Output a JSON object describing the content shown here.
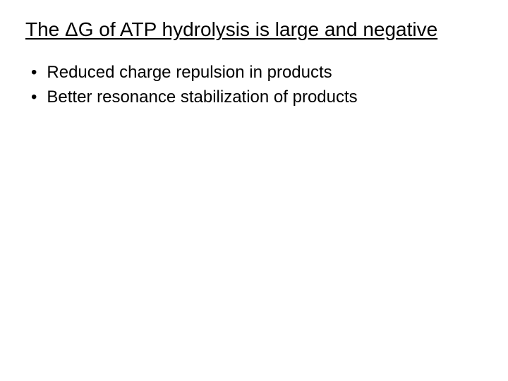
{
  "slide": {
    "title": "The ΔG of ATP hydrolysis is large and negative",
    "bullets": [
      "Reduced charge repulsion in products",
      "Better resonance stabilization of products"
    ]
  },
  "style": {
    "background_color": "#ffffff",
    "text_color": "#000000",
    "title_fontsize": 28,
    "title_underline": true,
    "bullet_fontsize": 24,
    "bullet_marker": "•",
    "font_family": "Arial"
  }
}
